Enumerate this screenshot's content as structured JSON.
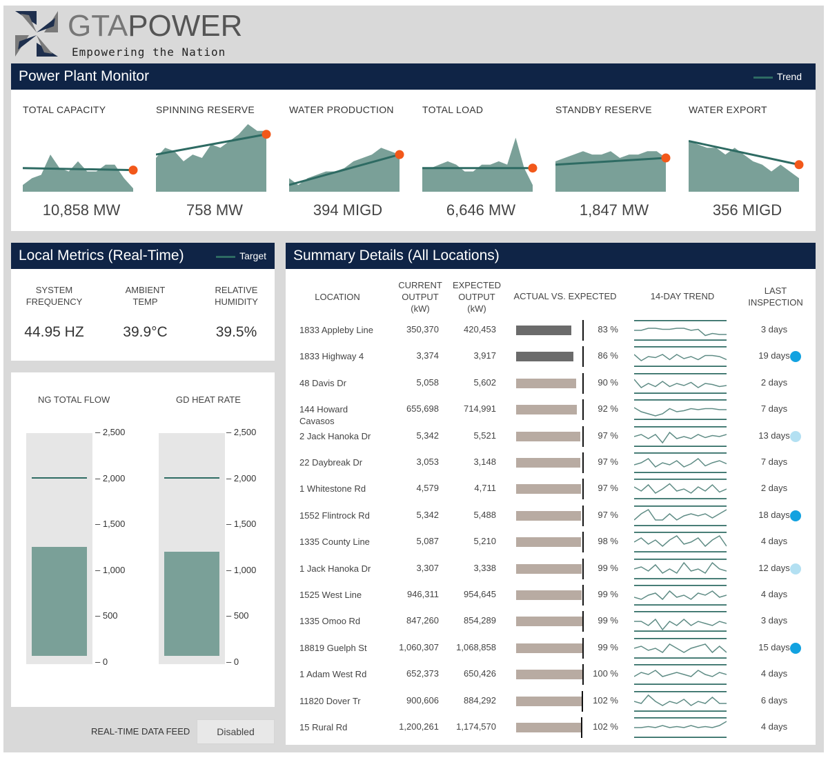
{
  "brand": {
    "name_part1": "GTA",
    "name_part2": "POWER",
    "tagline": "Empowering the Nation",
    "logo_icon": "pinwheel-logo",
    "colors": {
      "dark": "#1e2f4d",
      "gray": "#7a7a7a"
    }
  },
  "colors": {
    "nav": "#0f2446",
    "area": "#7aa098",
    "trend": "#2e6b63",
    "marker": "#f2581a",
    "bar_dark": "#6b6b6b",
    "bar_light": "#b8aba2",
    "dot_dark": "#12a2e0",
    "dot_light": "#b3e0f2"
  },
  "plant_monitor": {
    "title": "Power Plant Monitor",
    "legend_label": "Trend",
    "kpis": [
      {
        "label": "TOTAL CAPACITY",
        "value": "10,858 MW",
        "spark": [
          0.1,
          0.2,
          0.25,
          0.55,
          0.35,
          0.3,
          0.45,
          0.3,
          0.3,
          0.4,
          0.4,
          0.2,
          0.05
        ],
        "trend": [
          0.35,
          0.32
        ]
      },
      {
        "label": "SPINNING RESERVE",
        "value": "758 MW",
        "spark": [
          0.5,
          0.65,
          0.6,
          0.45,
          0.55,
          0.5,
          0.7,
          0.65,
          0.75,
          0.85,
          1.0,
          0.9,
          0.9
        ],
        "trend": [
          0.55,
          0.85
        ]
      },
      {
        "label": "WATER PRODUCTION",
        "value": "394 MIGD",
        "spark": [
          0.2,
          0.1,
          0.2,
          0.25,
          0.3,
          0.3,
          0.35,
          0.45,
          0.5,
          0.55,
          0.65,
          0.6,
          0.55
        ],
        "trend": [
          0.1,
          0.55
        ]
      },
      {
        "label": "TOTAL LOAD",
        "value": "6,646 MW",
        "spark": [
          0.35,
          0.35,
          0.4,
          0.45,
          0.4,
          0.3,
          0.3,
          0.4,
          0.4,
          0.45,
          0.4,
          0.8,
          0.35,
          0.1
        ],
        "trend": [
          0.35,
          0.35
        ]
      },
      {
        "label": "STANDBY RESERVE",
        "value": "1,847 MW",
        "spark": [
          0.45,
          0.5,
          0.55,
          0.6,
          0.55,
          0.55,
          0.6,
          0.5,
          0.55,
          0.55,
          0.6,
          0.6,
          0.5
        ],
        "trend": [
          0.4,
          0.5
        ]
      },
      {
        "label": "WATER EXPORT",
        "value": "356 MIGD",
        "spark": [
          0.75,
          0.7,
          0.65,
          0.65,
          0.55,
          0.65,
          0.55,
          0.45,
          0.4,
          0.3,
          0.4,
          0.3,
          0.2
        ],
        "trend": [
          0.75,
          0.4
        ]
      }
    ]
  },
  "local_metrics": {
    "title": "Local Metrics (Real-Time)",
    "legend_label": "Target",
    "metrics": [
      {
        "label_line1": "SYSTEM",
        "label_line2": "FREQUENCY",
        "value": "44.95 HZ"
      },
      {
        "label_line1": "AMBIENT",
        "label_line2": "TEMP",
        "value": "39.9°C"
      },
      {
        "label_line1": "RELATIVE",
        "label_line2": "HUMIDITY",
        "value": "39.5%"
      }
    ]
  },
  "gauges": {
    "scale_max": 2500,
    "ticks": [
      "2,500",
      "2,000",
      "1,500",
      "1,000",
      "500",
      "0"
    ],
    "items": [
      {
        "label": "NG TOTAL FLOW",
        "value": 1220,
        "target": 2000
      },
      {
        "label": "GD HEAT RATE",
        "value": 1170,
        "target": 2000
      }
    ]
  },
  "data_feed": {
    "label": "REAL-TIME DATA FEED",
    "button": "Disabled"
  },
  "summary": {
    "title": "Summary Details (All Locations)",
    "headers": {
      "location": "LOCATION",
      "current": [
        "CURRENT",
        "OUTPUT",
        "(kW)"
      ],
      "expected": [
        "EXPECTED",
        "OUTPUT",
        "(kW)"
      ],
      "actual_vs_expected": "ACTUAL VS. EXPECTED",
      "trend": "14-DAY TREND",
      "inspection": [
        "LAST",
        "INSPECTION"
      ]
    },
    "rows": [
      {
        "location": "1833 Appleby Line",
        "current": "350,370",
        "expected": "420,453",
        "percent": "83 %",
        "actual_ratio": 0.83,
        "dark": true,
        "days": "3 days",
        "dot": "",
        "trend": [
          0.5,
          0.5,
          0.6,
          0.6,
          0.55,
          0.55,
          0.6,
          0.6,
          0.5,
          0.55,
          0.25,
          0.35,
          0.3,
          0.3
        ]
      },
      {
        "location": "1833 Highway 4",
        "current": "3,374",
        "expected": "3,917",
        "percent": "86 %",
        "actual_ratio": 0.86,
        "dark": true,
        "days": "19 days",
        "dot": "dark",
        "trend": [
          0.6,
          0.3,
          0.5,
          0.45,
          0.6,
          0.35,
          0.6,
          0.4,
          0.5,
          0.35,
          0.55,
          0.55,
          0.5,
          0.35
        ]
      },
      {
        "location": "48 Davis Dr",
        "current": "5,058",
        "expected": "5,602",
        "percent": "90 %",
        "actual_ratio": 0.9,
        "dark": false,
        "days": "2 days",
        "dot": "",
        "trend": [
          0.7,
          0.3,
          0.5,
          0.35,
          0.6,
          0.35,
          0.5,
          0.4,
          0.55,
          0.3,
          0.5,
          0.45,
          0.35,
          0.4
        ]
      },
      {
        "location": "144 Howard Cavasos",
        "current": "655,698",
        "expected": "714,991",
        "percent": "92 %",
        "actual_ratio": 0.92,
        "dark": false,
        "days": "7 days",
        "dot": "",
        "trend": [
          0.6,
          0.4,
          0.3,
          0.2,
          0.3,
          0.55,
          0.4,
          0.45,
          0.55,
          0.5,
          0.55,
          0.55,
          0.5,
          0.5
        ]
      },
      {
        "location": "2 Jack Hanoka Dr",
        "current": "5,342",
        "expected": "5,521",
        "percent": "97 %",
        "actual_ratio": 0.97,
        "dark": false,
        "days": "13 days",
        "dot": "light",
        "trend": [
          0.5,
          0.6,
          0.4,
          0.6,
          0.2,
          0.7,
          0.4,
          0.5,
          0.4,
          0.6,
          0.45,
          0.55,
          0.5,
          0.6
        ]
      },
      {
        "location": "22 Daybreak Dr",
        "current": "3,053",
        "expected": "3,148",
        "percent": "97 %",
        "actual_ratio": 0.97,
        "dark": false,
        "days": "7 days",
        "dot": "",
        "trend": [
          0.4,
          0.5,
          0.7,
          0.3,
          0.5,
          0.4,
          0.6,
          0.3,
          0.45,
          0.7,
          0.35,
          0.5,
          0.6,
          0.45
        ]
      },
      {
        "location": "1 Whitestone Rd",
        "current": "4,579",
        "expected": "4,711",
        "percent": "97 %",
        "actual_ratio": 0.97,
        "dark": false,
        "days": "2 days",
        "dot": "",
        "trend": [
          0.6,
          0.4,
          0.7,
          0.3,
          0.5,
          0.75,
          0.4,
          0.5,
          0.3,
          0.6,
          0.4,
          0.7,
          0.35,
          0.5
        ]
      },
      {
        "location": "1552 Flintrock Rd",
        "current": "5,342",
        "expected": "5,488",
        "percent": "97 %",
        "actual_ratio": 0.97,
        "dark": false,
        "days": "18 days",
        "dot": "dark",
        "trend": [
          0.3,
          0.6,
          0.8,
          0.3,
          0.3,
          0.6,
          0.3,
          0.5,
          0.6,
          0.5,
          0.6,
          0.4,
          0.6,
          0.8
        ]
      },
      {
        "location": "1335 County Line",
        "current": "5,087",
        "expected": "5,210",
        "percent": "98 %",
        "actual_ratio": 0.98,
        "dark": false,
        "days": "4 days",
        "dot": "",
        "trend": [
          0.5,
          0.7,
          0.4,
          0.6,
          0.3,
          0.6,
          0.8,
          0.4,
          0.5,
          0.7,
          0.3,
          0.6,
          0.8,
          0.3
        ]
      },
      {
        "location": "1 Jack Hanoka Dr",
        "current": "3,307",
        "expected": "3,338",
        "percent": "99 %",
        "actual_ratio": 0.99,
        "dark": false,
        "days": "12 days",
        "dot": "light",
        "trend": [
          0.5,
          0.6,
          0.4,
          0.7,
          0.3,
          0.5,
          0.3,
          0.8,
          0.4,
          0.5,
          0.3,
          0.8,
          0.5,
          0.4
        ]
      },
      {
        "location": "1525 West Line",
        "current": "946,311",
        "expected": "954,645",
        "percent": "99 %",
        "actual_ratio": 0.99,
        "dark": false,
        "days": "4 days",
        "dot": "",
        "trend": [
          0.4,
          0.3,
          0.5,
          0.6,
          0.3,
          0.7,
          0.4,
          0.5,
          0.3,
          0.6,
          0.5,
          0.7,
          0.4,
          0.5
        ]
      },
      {
        "location": "1335 Omoo Rd",
        "current": "847,260",
        "expected": "854,289",
        "percent": "99 %",
        "actual_ratio": 0.99,
        "dark": false,
        "days": "3 days",
        "dot": "",
        "trend": [
          0.5,
          0.5,
          0.3,
          0.6,
          0.1,
          0.5,
          0.3,
          0.6,
          0.3,
          0.5,
          0.4,
          0.3,
          0.5,
          0.4
        ]
      },
      {
        "location": "18819 Guelph St",
        "current": "1,060,307",
        "expected": "1,068,858",
        "percent": "99 %",
        "actual_ratio": 0.99,
        "dark": false,
        "days": "15 days",
        "dot": "dark",
        "trend": [
          0.5,
          0.6,
          0.4,
          0.5,
          0.3,
          0.7,
          0.5,
          0.3,
          0.5,
          0.6,
          0.7,
          0.3,
          0.6,
          0.3
        ]
      },
      {
        "location": "1 Adam West Rd",
        "current": "652,373",
        "expected": "650,426",
        "percent": "100 %",
        "actual_ratio": 1.0,
        "dark": false,
        "days": "4 days",
        "dot": "",
        "trend": [
          0.4,
          0.6,
          0.5,
          0.7,
          0.4,
          0.5,
          0.6,
          0.5,
          0.4,
          0.7,
          0.5,
          0.4,
          0.6,
          0.5
        ]
      },
      {
        "location": "11820 Dover Tr",
        "current": "900,606",
        "expected": "884,292",
        "percent": "102 %",
        "actual_ratio": 1.02,
        "dark": false,
        "days": "6 days",
        "dot": "",
        "trend": [
          0.5,
          0.4,
          0.8,
          0.5,
          0.3,
          0.5,
          0.4,
          0.6,
          0.3,
          0.5,
          0.4,
          0.7,
          0.4,
          0.4
        ]
      },
      {
        "location": "15 Rural Rd",
        "current": "1,200,261",
        "expected": "1,174,570",
        "percent": "102 %",
        "actual_ratio": 1.02,
        "dark": false,
        "days": "4 days",
        "dot": "",
        "trend": [
          0.5,
          0.5,
          0.55,
          0.5,
          0.6,
          0.5,
          0.55,
          0.5,
          0.6,
          0.5,
          0.55,
          0.5,
          0.6,
          0.8
        ]
      }
    ]
  }
}
